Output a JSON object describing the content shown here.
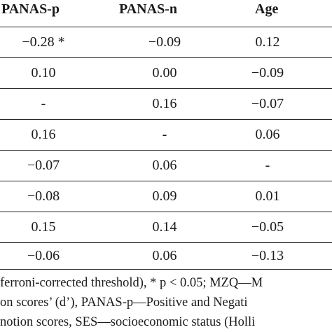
{
  "table": {
    "headers": [
      "PANAS-p",
      "PANAS-n",
      "Age"
    ],
    "rows": [
      [
        "−0.28 *",
        "−0.09",
        "0.12"
      ],
      [
        "0.10",
        "0.00",
        "−0.09"
      ],
      [
        "-",
        "0.16",
        "−0.07"
      ],
      [
        "0.16",
        "-",
        "0.06"
      ],
      [
        "−0.07",
        "0.06",
        "-"
      ],
      [
        "−0.08",
        "0.09",
        "0.01"
      ],
      [
        "0.15",
        "0.14",
        "−0.05"
      ],
      [
        "−0.06",
        "0.06",
        "−0.13"
      ]
    ]
  },
  "footnote": {
    "lines": [
      "ferroni-corrected threshold), * p < 0.05; MZQ—M",
      "on scores’ (d’), PANAS-p—Positive and Negati",
      "notion scores, SES—socioeconomic status (Holli"
    ]
  }
}
